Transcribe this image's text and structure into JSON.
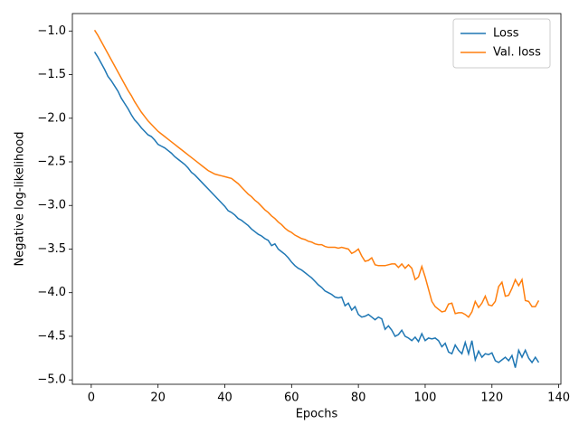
{
  "chart_data": {
    "type": "line",
    "xlabel": "Epochs",
    "ylabel": "Negative log-likelihood",
    "x": [
      1,
      2,
      3,
      4,
      5,
      6,
      7,
      8,
      9,
      10,
      11,
      12,
      13,
      14,
      15,
      16,
      17,
      18,
      19,
      20,
      21,
      22,
      23,
      24,
      25,
      26,
      27,
      28,
      29,
      30,
      31,
      32,
      33,
      34,
      35,
      36,
      37,
      38,
      39,
      40,
      41,
      42,
      43,
      44,
      45,
      46,
      47,
      48,
      49,
      50,
      51,
      52,
      53,
      54,
      55,
      56,
      57,
      58,
      59,
      60,
      61,
      62,
      63,
      64,
      65,
      66,
      67,
      68,
      69,
      70,
      71,
      72,
      73,
      74,
      75,
      76,
      77,
      78,
      79,
      80,
      81,
      82,
      83,
      84,
      85,
      86,
      87,
      88,
      89,
      90,
      91,
      92,
      93,
      94,
      95,
      96,
      97,
      98,
      99,
      100,
      101,
      102,
      103,
      104,
      105,
      106,
      107,
      108,
      109,
      110,
      111,
      112,
      113,
      114,
      115,
      116,
      117,
      118,
      119,
      120,
      121,
      122,
      123,
      124,
      125,
      126,
      127,
      128,
      129,
      130,
      131,
      132,
      133,
      134
    ],
    "series": [
      {
        "name": "Loss",
        "color": "#1f77b4",
        "values": [
          -1.24,
          -1.3,
          -1.37,
          -1.44,
          -1.52,
          -1.57,
          -1.63,
          -1.69,
          -1.77,
          -1.83,
          -1.89,
          -1.96,
          -2.02,
          -2.06,
          -2.11,
          -2.15,
          -2.19,
          -2.21,
          -2.25,
          -2.3,
          -2.32,
          -2.34,
          -2.37,
          -2.4,
          -2.44,
          -2.47,
          -2.5,
          -2.53,
          -2.57,
          -2.62,
          -2.65,
          -2.69,
          -2.73,
          -2.77,
          -2.81,
          -2.85,
          -2.89,
          -2.93,
          -2.97,
          -3.01,
          -3.06,
          -3.08,
          -3.11,
          -3.15,
          -3.17,
          -3.2,
          -3.23,
          -3.27,
          -3.3,
          -3.33,
          -3.35,
          -3.38,
          -3.4,
          -3.46,
          -3.44,
          -3.5,
          -3.53,
          -3.56,
          -3.6,
          -3.65,
          -3.69,
          -3.72,
          -3.74,
          -3.77,
          -3.8,
          -3.83,
          -3.87,
          -3.91,
          -3.94,
          -3.98,
          -4.0,
          -4.02,
          -4.05,
          -4.06,
          -4.05,
          -4.15,
          -4.12,
          -4.2,
          -4.16,
          -4.25,
          -4.28,
          -4.27,
          -4.25,
          -4.28,
          -4.31,
          -4.28,
          -4.3,
          -4.42,
          -4.38,
          -4.43,
          -4.5,
          -4.48,
          -4.43,
          -4.5,
          -4.52,
          -4.55,
          -4.51,
          -4.56,
          -4.47,
          -4.55,
          -4.52,
          -4.53,
          -4.52,
          -4.55,
          -4.62,
          -4.58,
          -4.68,
          -4.7,
          -4.6,
          -4.66,
          -4.7,
          -4.57,
          -4.7,
          -4.55,
          -4.77,
          -4.67,
          -4.74,
          -4.7,
          -4.71,
          -4.69,
          -4.78,
          -4.8,
          -4.77,
          -4.74,
          -4.78,
          -4.72,
          -4.86,
          -4.66,
          -4.74,
          -4.66,
          -4.75,
          -4.8,
          -4.74,
          -4.8
        ]
      },
      {
        "name": "Val. loss",
        "color": "#ff7f0e",
        "values": [
          -0.99,
          -1.05,
          -1.12,
          -1.19,
          -1.26,
          -1.33,
          -1.4,
          -1.47,
          -1.54,
          -1.61,
          -1.68,
          -1.74,
          -1.81,
          -1.87,
          -1.93,
          -1.98,
          -2.03,
          -2.07,
          -2.11,
          -2.15,
          -2.18,
          -2.21,
          -2.24,
          -2.27,
          -2.3,
          -2.33,
          -2.36,
          -2.39,
          -2.42,
          -2.45,
          -2.48,
          -2.51,
          -2.54,
          -2.57,
          -2.6,
          -2.62,
          -2.64,
          -2.65,
          -2.66,
          -2.67,
          -2.68,
          -2.69,
          -2.72,
          -2.75,
          -2.79,
          -2.83,
          -2.87,
          -2.9,
          -2.94,
          -2.97,
          -3.01,
          -3.05,
          -3.08,
          -3.12,
          -3.15,
          -3.19,
          -3.22,
          -3.26,
          -3.29,
          -3.31,
          -3.34,
          -3.36,
          -3.38,
          -3.39,
          -3.41,
          -3.42,
          -3.44,
          -3.45,
          -3.45,
          -3.47,
          -3.48,
          -3.48,
          -3.48,
          -3.49,
          -3.48,
          -3.49,
          -3.5,
          -3.55,
          -3.53,
          -3.5,
          -3.58,
          -3.64,
          -3.63,
          -3.6,
          -3.68,
          -3.69,
          -3.69,
          -3.69,
          -3.68,
          -3.67,
          -3.67,
          -3.71,
          -3.67,
          -3.72,
          -3.68,
          -3.72,
          -3.85,
          -3.82,
          -3.7,
          -3.82,
          -3.96,
          -4.1,
          -4.16,
          -4.19,
          -4.22,
          -4.21,
          -4.13,
          -4.12,
          -4.24,
          -4.23,
          -4.23,
          -4.25,
          -4.28,
          -4.22,
          -4.1,
          -4.17,
          -4.12,
          -4.04,
          -4.14,
          -4.15,
          -4.1,
          -3.93,
          -3.88,
          -4.04,
          -4.03,
          -3.95,
          -3.85,
          -3.92,
          -3.85,
          -4.09,
          -4.1,
          -4.16,
          -4.16,
          -4.09
        ]
      }
    ],
    "xlim": [
      -5.65,
      140.65
    ],
    "xticks": [
      0,
      20,
      40,
      60,
      80,
      100,
      120,
      140
    ],
    "ylim": [
      -5.05,
      -0.8
    ],
    "yticks": [
      {
        "value": -5,
        "label": "−5.0"
      },
      {
        "value": -4.5,
        "label": "−4.5"
      },
      {
        "value": -4,
        "label": "−4.0"
      },
      {
        "value": -3.5,
        "label": "−3.5"
      },
      {
        "value": -3,
        "label": "−3.0"
      },
      {
        "value": -2.5,
        "label": "−2.5"
      },
      {
        "value": -2,
        "label": "−2.0"
      },
      {
        "value": -1.5,
        "label": "−1.5"
      },
      {
        "value": -1,
        "label": "−1.0"
      }
    ],
    "grid": false,
    "legend": "upper right"
  }
}
